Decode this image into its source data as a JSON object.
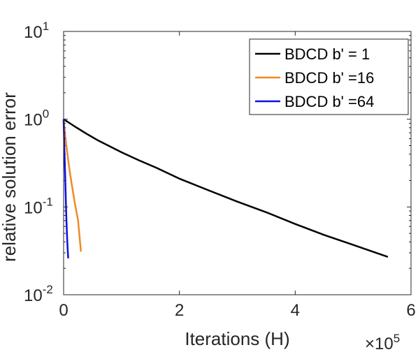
{
  "chart_data": {
    "type": "line",
    "xlabel": "Iterations (H)",
    "ylabel": "relative solution error",
    "x_multiplier_label": "×10",
    "x_multiplier_exp": "5",
    "xlim": [
      0,
      600000
    ],
    "ylim": [
      0.01,
      10
    ],
    "yscale": "log",
    "grid": false,
    "legend_position": "top-right",
    "x_ticks": [
      {
        "value": 0,
        "label": "0"
      },
      {
        "value": 200000,
        "label": "2"
      },
      {
        "value": 400000,
        "label": "4"
      },
      {
        "value": 600000,
        "label": "6"
      }
    ],
    "y_ticks": [
      {
        "value": 0.01,
        "base": "10",
        "exp": "-2"
      },
      {
        "value": 0.1,
        "base": "10",
        "exp": "-1"
      },
      {
        "value": 1,
        "base": "10",
        "exp": "0"
      },
      {
        "value": 10,
        "base": "10",
        "exp": "1"
      }
    ],
    "series": [
      {
        "name": "BDCD b' = 1",
        "color": "#000000",
        "x": [
          0,
          20000,
          40000,
          60000,
          80000,
          100000,
          130000,
          160000,
          200000,
          250000,
          300000,
          350000,
          400000,
          450000,
          500000,
          560000
        ],
        "y": [
          1.0,
          0.82,
          0.68,
          0.57,
          0.49,
          0.42,
          0.34,
          0.28,
          0.21,
          0.155,
          0.115,
          0.087,
          0.064,
          0.048,
          0.037,
          0.027
        ]
      },
      {
        "name": "BDCD b' =16",
        "color": "#f08a24",
        "x": [
          0,
          2000,
          4000,
          6000,
          8000,
          10000,
          13000,
          16000,
          20000,
          25000,
          30000
        ],
        "y": [
          1.0,
          0.72,
          0.55,
          0.43,
          0.34,
          0.27,
          0.2,
          0.15,
          0.105,
          0.07,
          0.031
        ]
      },
      {
        "name": "BDCD b' =64",
        "color": "#1010e0",
        "x": [
          0,
          1000,
          2000,
          3000,
          4000,
          5000,
          6000,
          7000,
          8000
        ],
        "y": [
          1.0,
          0.55,
          0.32,
          0.19,
          0.11,
          0.068,
          0.045,
          0.033,
          0.026
        ]
      }
    ]
  }
}
